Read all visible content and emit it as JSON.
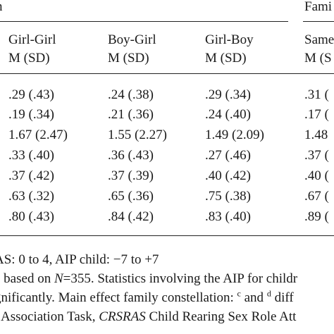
{
  "header": {
    "group_left_partial": "n",
    "group_right_partial": "Fami",
    "columns": [
      {
        "line1": "Girl-Girl",
        "line2": "M (SD)"
      },
      {
        "line1": "Boy-Girl",
        "line2": "M (SD)"
      },
      {
        "line1": "Girl-Boy",
        "line2": "M (SD)"
      },
      {
        "line1": "Same",
        "line2": "M (S"
      }
    ]
  },
  "rows": [
    [
      ".29 (.43)",
      ".24 (.38)",
      ".29 (.34)",
      ".31 ("
    ],
    [
      ".19 (.34)",
      ".21 (.36)",
      ".24 (.40)",
      ".17 ("
    ],
    [
      "1.67 (2.47)",
      "1.55 (2.27)",
      "1.49 (2.09)",
      "1.48"
    ],
    [
      ".33 (.40)",
      ".36 (.43)",
      ".27 (.46)",
      ".37 ("
    ],
    [
      ".37 (.42)",
      ".37 (.39)",
      ".40 (.42)",
      ".40 ("
    ],
    [
      ".63 (.32)",
      ".65 (.36)",
      ".75 (.38)",
      ".67 ("
    ],
    [
      ".80 (.43)",
      ".84 (.42)",
      ".83 (.40)",
      ".89 ("
    ]
  ],
  "notes": {
    "line1": "AS: 0 to 4, AIP child: −7 to +7",
    "line2_a": "e based on ",
    "line2_n": "N",
    "line2_b": "=355. Statistics involving the AIP for childr",
    "line3_a": "gnificantly. Main effect family constellation: ",
    "line3_sup_c": "c",
    "line3_mid": " and ",
    "line3_sup_d": "d",
    "line3_b": " diff",
    "line4_a": "t Association Task, ",
    "line4_italic": "CRSRAS",
    "line4_b": " Child Rearing Sex Role Att"
  }
}
